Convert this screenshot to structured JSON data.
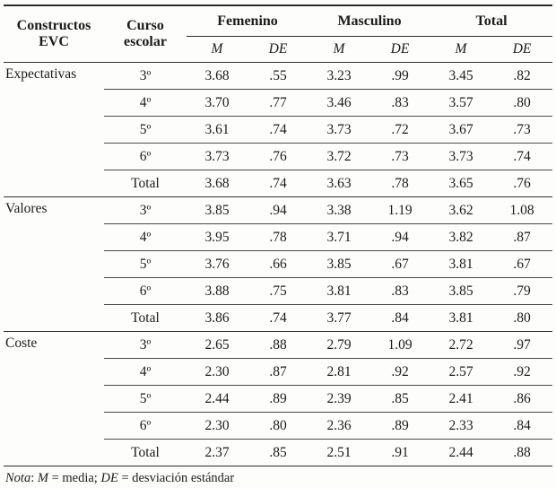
{
  "table": {
    "header": {
      "constructos_line1": "Constructos",
      "constructos_line2": "EVC",
      "curso_line1": "Curso",
      "curso_line2": "escolar",
      "groups": {
        "femenino": "Femenino",
        "masculino": "Masculino",
        "total": "Total"
      },
      "m_label": "M",
      "de_label": "DE"
    },
    "sections": [
      {
        "construct": "Expectativas",
        "rows": [
          {
            "curso": "3º",
            "values": [
              "3.68",
              ".55",
              "3.23",
              ".99",
              "3.45",
              ".82"
            ]
          },
          {
            "curso": "4º",
            "values": [
              "3.70",
              ".77",
              "3.46",
              ".83",
              "3.57",
              ".80"
            ]
          },
          {
            "curso": "5º",
            "values": [
              "3.61",
              ".74",
              "3.73",
              ".72",
              "3.67",
              ".73"
            ]
          },
          {
            "curso": "6º",
            "values": [
              "3.73",
              ".76",
              "3.72",
              ".73",
              "3.73",
              ".74"
            ]
          },
          {
            "curso": "Total",
            "values": [
              "3.68",
              ".74",
              "3.63",
              ".78",
              "3.65",
              ".76"
            ]
          }
        ]
      },
      {
        "construct": "Valores",
        "rows": [
          {
            "curso": "3º",
            "values": [
              "3.85",
              ".94",
              "3.38",
              "1.19",
              "3.62",
              "1.08"
            ]
          },
          {
            "curso": "4º",
            "values": [
              "3.95",
              ".78",
              "3.71",
              ".94",
              "3.82",
              ".87"
            ]
          },
          {
            "curso": "5º",
            "values": [
              "3.76",
              ".66",
              "3.85",
              ".67",
              "3.81",
              ".67"
            ]
          },
          {
            "curso": "6º",
            "values": [
              "3.88",
              ".75",
              "3.81",
              ".83",
              "3.85",
              ".79"
            ]
          },
          {
            "curso": "Total",
            "values": [
              "3.86",
              ".74",
              "3.77",
              ".84",
              "3.81",
              ".80"
            ]
          }
        ]
      },
      {
        "construct": "Coste",
        "rows": [
          {
            "curso": "3º",
            "values": [
              "2.65",
              ".88",
              "2.79",
              "1.09",
              "2.72",
              ".97"
            ]
          },
          {
            "curso": "4º",
            "values": [
              "2.30",
              ".87",
              "2.81",
              ".92",
              "2.57",
              ".92"
            ]
          },
          {
            "curso": "5º",
            "values": [
              "2.44",
              ".89",
              "2.39",
              ".85",
              "2.41",
              ".86"
            ]
          },
          {
            "curso": "6º",
            "values": [
              "2.30",
              ".80",
              "2.36",
              ".89",
              "2.33",
              ".84"
            ]
          },
          {
            "curso": "Total",
            "values": [
              "2.37",
              ".85",
              "2.51",
              ".91",
              "2.44",
              ".88"
            ]
          }
        ]
      }
    ],
    "note": {
      "part1": "Nota",
      "part2": ": ",
      "part3": "M",
      "part4": " = media; ",
      "part5": "DE",
      "part6": " = desviación estándar"
    }
  }
}
